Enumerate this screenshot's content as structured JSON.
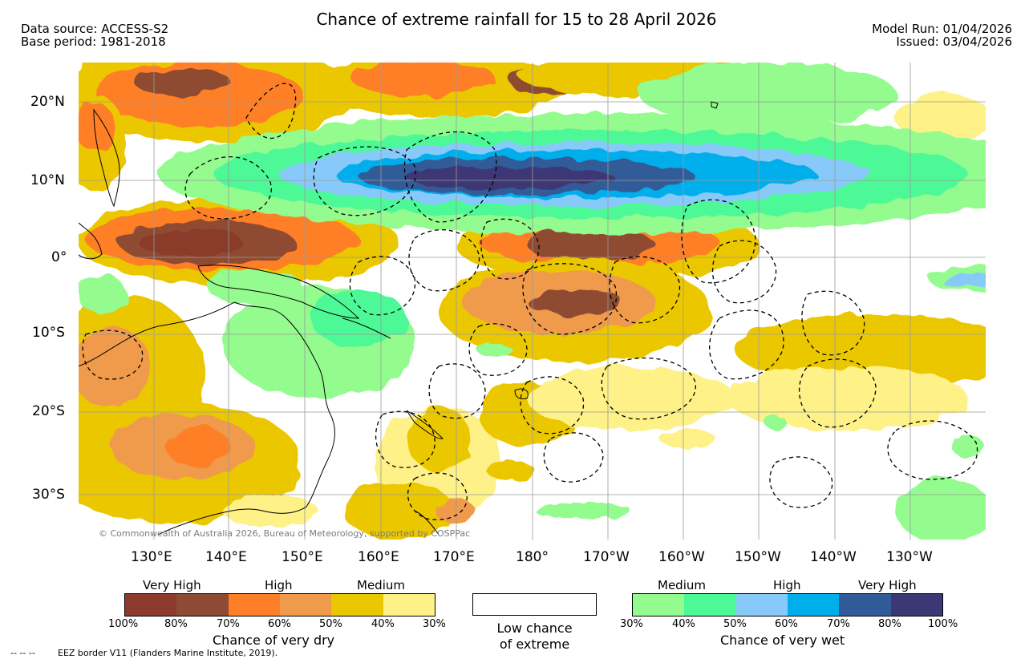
{
  "header": {
    "title": "Chance of extreme rainfall for 15 to 28 April 2026",
    "data_source": "Data source: ACCESS-S2",
    "base_period": "Base period: 1981-2018",
    "model_run": "Model Run: 01/04/2026",
    "issued": "Issued: 03/04/2026"
  },
  "map": {
    "lat_labels": [
      "20°N",
      "10°N",
      "0°",
      "10°S",
      "20°S",
      "30°S"
    ],
    "lon_labels": [
      "130°E",
      "140°E",
      "150°E",
      "160°E",
      "170°E",
      "180°",
      "170°W",
      "160°W",
      "150°W",
      "140°W",
      "130°W"
    ],
    "copyright": "© Commonwealth of Australia 2026, Bureau of Meteorology, supported by COSPPac"
  },
  "legend": {
    "dry": {
      "headings": [
        "Very High",
        "High",
        "Medium"
      ],
      "colors": [
        "#8b3a2c",
        "#8e4b33",
        "#fe7f27",
        "#f09a4c",
        "#ebc701",
        "#fdf188"
      ],
      "ticks": [
        "100%",
        "80%",
        "70%",
        "60%",
        "50%",
        "40%",
        "30%"
      ],
      "title": "Chance of very dry"
    },
    "neutral": {
      "line1": "Low chance",
      "line2": "of extreme"
    },
    "wet": {
      "headings": [
        "Medium",
        "High",
        "Very High"
      ],
      "colors": [
        "#94fb8f",
        "#4df896",
        "#87cafa",
        "#01aeec",
        "#305b98",
        "#3c3775"
      ],
      "ticks": [
        "30%",
        "40%",
        "50%",
        "60%",
        "70%",
        "80%",
        "100%"
      ],
      "title": "Chance of very wet"
    }
  },
  "footer": {
    "eez_note": "EEZ border V11 (Flanders Marine Institute, 2019).",
    "dash_symbol": "--  --  --"
  }
}
